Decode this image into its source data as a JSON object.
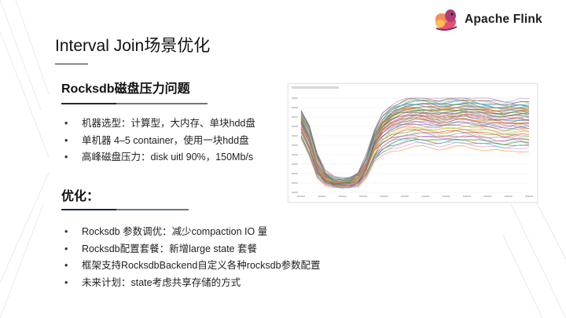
{
  "logo": {
    "text": "Apache Flink",
    "icon": "squirrel-logo-icon"
  },
  "slide": {
    "title": "Interval Join场景优化",
    "section1": {
      "heading": "Rocksdb磁盘压力问题",
      "bullets": [
        "机器选型：计算型，大内存、单块hdd盘",
        "单机器 4–5 container，使用一块hdd盘",
        "高峰磁盘压力：disk uitl 90%，150Mb/s"
      ]
    },
    "section2": {
      "heading": "优化：",
      "bullets": [
        "Rocksdb 参数调优：减少compaction IO 量",
        "Rocksdb配置套餐：新增large state 套餐",
        "框架支持RocksdbBackend自定义各种rocksdb参数配置",
        "未来计划：state考虑共享存储的方式"
      ]
    }
  },
  "bullet_char": "•",
  "colors": {
    "accent_rule": "#1e2a36",
    "rule": "#6b7681",
    "text": "#222222"
  },
  "chart_data": {
    "type": "line",
    "title": "",
    "xlabel": "",
    "ylabel": "",
    "ylim": [
      0,
      100
    ],
    "series_count": 60,
    "series": [
      {
        "values": [
          78,
          60,
          30,
          16,
          12,
          11,
          12,
          15,
          30,
          55,
          72,
          80,
          84,
          86,
          87,
          87,
          86,
          85,
          86,
          87,
          88,
          87,
          86,
          85,
          84,
          83,
          84,
          85,
          84
        ]
      },
      {
        "values": [
          82,
          64,
          34,
          18,
          13,
          12,
          13,
          17,
          33,
          58,
          74,
          82,
          88,
          91,
          92,
          93,
          92,
          90,
          91,
          92,
          93,
          92,
          91,
          90,
          89,
          88,
          89,
          90,
          89
        ]
      },
      {
        "values": [
          74,
          56,
          27,
          14,
          10,
          9,
          10,
          13,
          27,
          50,
          66,
          74,
          78,
          80,
          81,
          80,
          79,
          78,
          79,
          80,
          81,
          80,
          79,
          78,
          76,
          75,
          76,
          77,
          76
        ]
      },
      {
        "values": [
          70,
          52,
          24,
          13,
          9,
          8,
          9,
          12,
          24,
          46,
          60,
          66,
          70,
          72,
          73,
          72,
          71,
          70,
          71,
          72,
          72,
          71,
          70,
          69,
          68,
          67,
          68,
          68,
          67
        ]
      },
      {
        "values": [
          84,
          68,
          38,
          20,
          14,
          13,
          14,
          19,
          36,
          62,
          78,
          86,
          90,
          94,
          95,
          95,
          94,
          93,
          94,
          95,
          95,
          94,
          93,
          92,
          91,
          90,
          91,
          92,
          91
        ]
      },
      {
        "values": [
          66,
          48,
          22,
          12,
          9,
          8,
          9,
          11,
          22,
          42,
          55,
          60,
          63,
          65,
          66,
          66,
          65,
          64,
          65,
          66,
          66,
          65,
          64,
          63,
          62,
          61,
          62,
          62,
          61
        ]
      },
      {
        "values": [
          76,
          58,
          29,
          15,
          11,
          10,
          11,
          14,
          29,
          53,
          69,
          77,
          81,
          83,
          84,
          83,
          82,
          81,
          82,
          83,
          84,
          83,
          82,
          81,
          80,
          79,
          80,
          81,
          80
        ]
      },
      {
        "values": [
          80,
          62,
          32,
          17,
          12,
          11,
          12,
          16,
          31,
          56,
          73,
          81,
          86,
          88,
          89,
          89,
          88,
          87,
          88,
          89,
          90,
          89,
          88,
          87,
          86,
          85,
          86,
          87,
          86
        ]
      },
      {
        "values": [
          62,
          44,
          20,
          11,
          8,
          7,
          8,
          10,
          20,
          38,
          50,
          55,
          58,
          60,
          61,
          60,
          59,
          58,
          59,
          60,
          60,
          59,
          58,
          57,
          56,
          55,
          56,
          56,
          55
        ]
      },
      {
        "values": [
          72,
          54,
          26,
          14,
          10,
          9,
          10,
          13,
          26,
          48,
          63,
          70,
          74,
          76,
          77,
          76,
          75,
          74,
          75,
          76,
          77,
          76,
          75,
          74,
          73,
          72,
          73,
          73,
          72
        ]
      },
      {
        "values": [
          86,
          70,
          40,
          21,
          15,
          13,
          15,
          20,
          38,
          64,
          80,
          88,
          92,
          96,
          97,
          97,
          96,
          95,
          96,
          97,
          97,
          96,
          95,
          94,
          93,
          92,
          93,
          94,
          93
        ]
      },
      {
        "values": [
          58,
          40,
          18,
          10,
          7,
          6,
          7,
          9,
          18,
          34,
          45,
          50,
          52,
          54,
          55,
          55,
          54,
          53,
          54,
          55,
          55,
          54,
          53,
          52,
          51,
          50,
          51,
          51,
          50
        ]
      }
    ]
  }
}
